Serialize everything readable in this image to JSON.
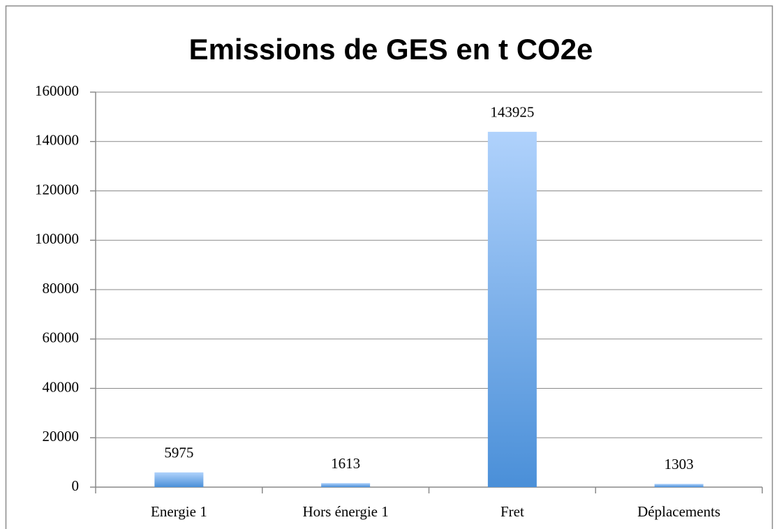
{
  "chart_data": {
    "type": "bar",
    "title": "Emissions de GES en t CO2e",
    "categories": [
      "Energie 1",
      "Hors énergie 1",
      "Fret",
      "Déplacements"
    ],
    "values": [
      5975,
      1613,
      143925,
      1303
    ],
    "color": "#5b9ae0",
    "ylim": [
      0,
      160000
    ],
    "yticks": [
      0,
      20000,
      40000,
      60000,
      80000,
      100000,
      120000,
      140000,
      160000
    ],
    "grid": true
  }
}
